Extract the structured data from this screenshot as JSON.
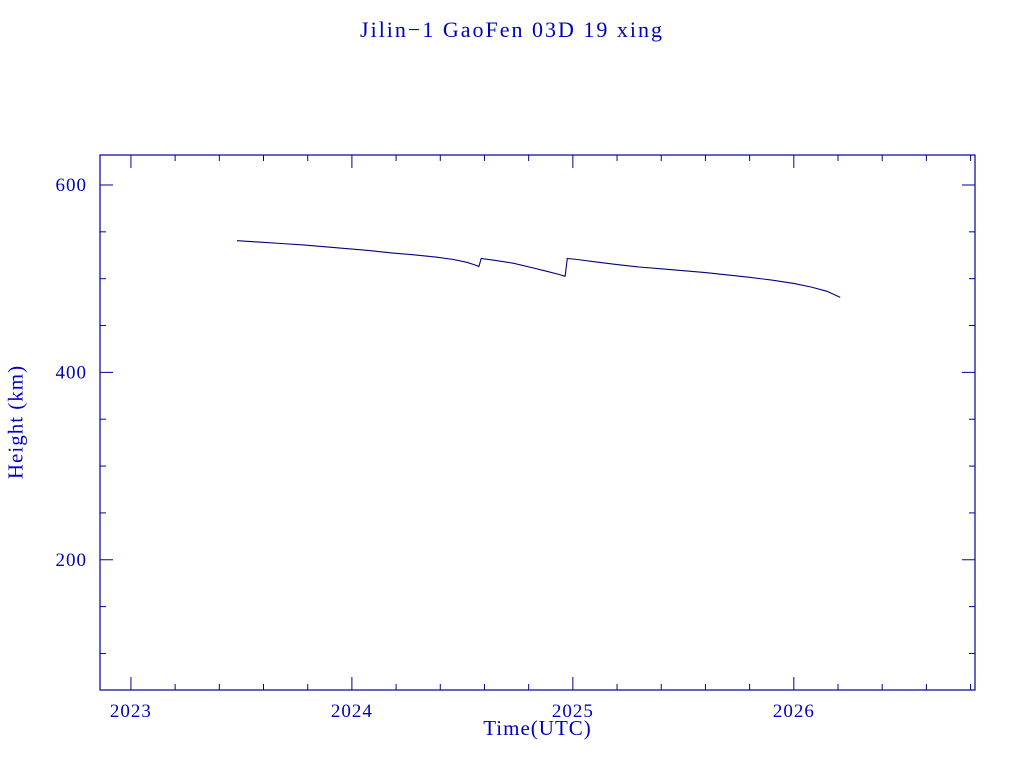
{
  "page": {
    "background": "#ffffff"
  },
  "chart_data": {
    "type": "line",
    "title": "Jilin−1 GaoFen 03D 19 xing",
    "xlabel": "Time(UTC)",
    "ylabel": "Height (km)",
    "xlim": [
      2022.86,
      2026.82
    ],
    "ylim": [
      61,
      632
    ],
    "xticks": [
      2023,
      2024,
      2025,
      2026
    ],
    "yticks": [
      200,
      400,
      600
    ],
    "x_minor_step": 0.2,
    "y_minor_step": 50,
    "grid": false,
    "legend": "none",
    "line_color": "#000080",
    "axis_color": "#000099",
    "text_color": "#0000BB",
    "series": [
      {
        "name": "orbit-height",
        "points": [
          [
            2023.48,
            540.5
          ],
          [
            2023.58,
            539.0
          ],
          [
            2023.68,
            537.5
          ],
          [
            2023.78,
            536.0
          ],
          [
            2023.88,
            534.0
          ],
          [
            2023.98,
            532.0
          ],
          [
            2024.08,
            530.0
          ],
          [
            2024.18,
            527.5
          ],
          [
            2024.28,
            525.5
          ],
          [
            2024.38,
            523.0
          ],
          [
            2024.46,
            520.5
          ],
          [
            2024.52,
            517.5
          ],
          [
            2024.56,
            514.5
          ],
          [
            2024.575,
            513.0
          ],
          [
            2024.585,
            521.5
          ],
          [
            2024.65,
            519.5
          ],
          [
            2024.73,
            516.5
          ],
          [
            2024.81,
            512.0
          ],
          [
            2024.88,
            508.0
          ],
          [
            2024.93,
            505.0
          ],
          [
            2024.965,
            502.5
          ],
          [
            2024.975,
            521.5
          ],
          [
            2025.02,
            520.5
          ],
          [
            2025.1,
            518.0
          ],
          [
            2025.2,
            515.0
          ],
          [
            2025.3,
            512.5
          ],
          [
            2025.4,
            510.5
          ],
          [
            2025.5,
            508.5
          ],
          [
            2025.6,
            506.5
          ],
          [
            2025.7,
            504.0
          ],
          [
            2025.8,
            501.5
          ],
          [
            2025.9,
            498.5
          ],
          [
            2026.0,
            495.0
          ],
          [
            2026.08,
            491.0
          ],
          [
            2026.15,
            486.5
          ],
          [
            2026.21,
            480.0
          ]
        ]
      }
    ]
  }
}
